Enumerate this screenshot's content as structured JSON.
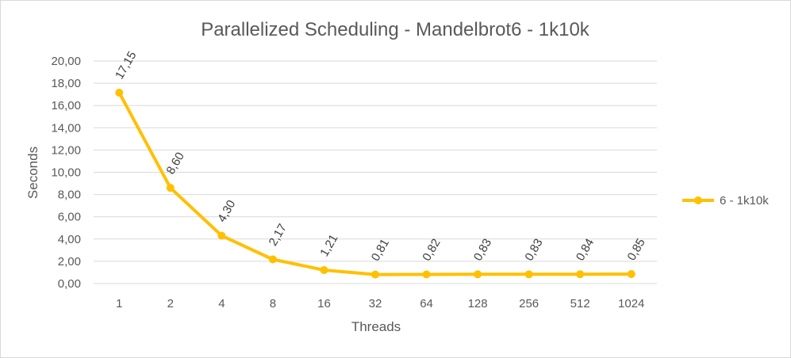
{
  "chart_data": {
    "type": "line",
    "title": "Parallelized Scheduling - Mandelbrot6 - 1k10k",
    "xlabel": "Threads",
    "ylabel": "Seconds",
    "categories": [
      "1",
      "2",
      "4",
      "8",
      "16",
      "32",
      "64",
      "128",
      "256",
      "512",
      "1024"
    ],
    "ylim": [
      0,
      20
    ],
    "ytick_labels": [
      "0,00",
      "2,00",
      "4,00",
      "6,00",
      "8,00",
      "10,00",
      "12,00",
      "14,00",
      "16,00",
      "18,00",
      "20,00"
    ],
    "series": [
      {
        "name": "6 - 1k10k",
        "color": "#ffc000",
        "values": [
          17.15,
          8.6,
          4.3,
          2.17,
          1.21,
          0.81,
          0.82,
          0.83,
          0.83,
          0.84,
          0.85
        ],
        "data_labels": [
          "17,15",
          "8,60",
          "4,30",
          "2,17",
          "1,21",
          "0,81",
          "0,82",
          "0,83",
          "0,83",
          "0,84",
          "0,85"
        ]
      }
    ],
    "grid": true,
    "legend_position": "right"
  }
}
